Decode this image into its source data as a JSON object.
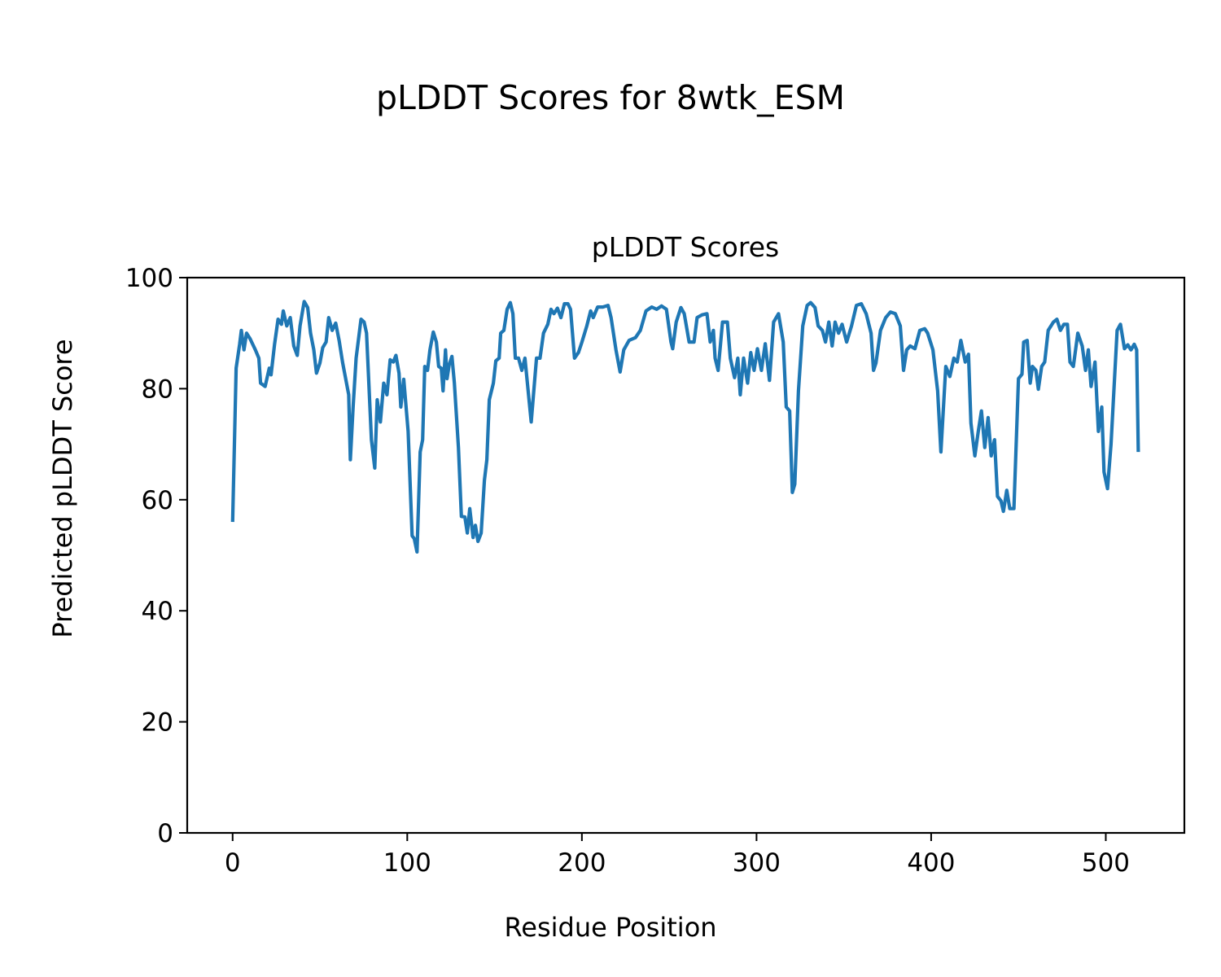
{
  "figure_title": "pLDDT Scores for 8wtk_ESM",
  "chart_data": {
    "type": "line",
    "title": "pLDDT Scores",
    "xlabel": "Residue Position",
    "ylabel": "Predicted pLDDT Score",
    "xlim": [
      -26,
      545
    ],
    "ylim": [
      0,
      100
    ],
    "xticks": [
      0,
      100,
      200,
      300,
      400,
      500
    ],
    "yticks": [
      0,
      20,
      40,
      60,
      80,
      100
    ],
    "grid": false,
    "line_color": "#1f77b4",
    "series": [
      {
        "name": "pLDDT",
        "x": [
          0,
          2,
          4,
          5,
          6.5,
          8,
          10,
          13,
          15,
          16,
          18.6,
          21,
          22,
          24,
          26,
          28,
          29,
          31,
          33,
          35,
          37,
          38.6,
          41,
          43,
          44.6,
          46.5,
          48,
          50,
          51.6,
          53.5,
          55,
          57,
          59,
          61,
          63,
          66.5,
          67.4,
          69,
          70.7,
          73.5,
          75.3,
          76.7,
          79.5,
          81.4,
          82.8,
          84.6,
          86.5,
          88.4,
          90.2,
          92,
          93.5,
          95.3,
          96.3,
          98,
          100.5,
          102.8,
          104,
          105.6,
          107.4,
          108.8,
          110,
          111.6,
          113,
          114.9,
          116.7,
          118,
          119.5,
          120.5,
          121.9,
          122.8,
          124,
          125.6,
          127,
          129.3,
          131,
          133,
          134.4,
          135.8,
          137.7,
          139,
          140.5,
          142.3,
          144.2,
          145.6,
          147,
          149.3,
          150.7,
          152.6,
          153.5,
          155.3,
          157.2,
          159,
          160.5,
          161.9,
          163.7,
          165.6,
          167.4,
          168.8,
          171,
          174,
          176,
          178,
          180.5,
          182.3,
          184,
          186,
          188,
          190,
          192,
          193.5,
          195.8,
          198,
          200,
          202.8,
          205,
          206.5,
          209,
          212,
          215,
          216.7,
          219.5,
          221.9,
          224,
          227,
          230.7,
          233.5,
          236.7,
          240,
          242.8,
          245.6,
          248.4,
          251,
          252,
          254,
          256.7,
          258.6,
          261.4,
          264.2,
          266,
          268.8,
          271.6,
          273.5,
          275.3,
          276.3,
          278,
          280.5,
          283.3,
          285,
          287.4,
          289.3,
          290.7,
          292.6,
          294.9,
          296.7,
          298.6,
          300.5,
          302.8,
          305,
          307.4,
          309.8,
          312.6,
          315.3,
          317,
          319,
          320.5,
          321.9,
          324,
          326.5,
          329,
          331,
          333.5,
          335.3,
          337.7,
          339.5,
          341.4,
          343.3,
          345,
          347,
          349,
          351.6,
          354.4,
          357.2,
          360,
          362.8,
          365.6,
          367,
          368.4,
          371,
          374,
          376.7,
          379.5,
          382.3,
          384.2,
          386,
          388,
          390.7,
          393.5,
          396.3,
          398,
          401,
          403.7,
          405.6,
          408.4,
          410.7,
          413,
          414.9,
          417,
          419.5,
          421.4,
          422.8,
          425,
          427,
          428.8,
          430.7,
          432.6,
          434.4,
          436.3,
          438,
          440,
          441.4,
          443.3,
          445,
          447.4,
          450,
          452,
          453,
          455,
          456.7,
          458,
          460,
          461.4,
          463.3,
          465,
          467,
          470,
          472,
          474,
          476,
          478,
          479.5,
          481.4,
          484,
          486.5,
          488.4,
          490,
          491.6,
          493.8,
          495.8,
          497.7,
          499,
          501,
          503,
          505,
          506.5,
          508.4,
          510.7,
          512.6,
          514.4,
          516.3,
          517.7,
          518.6
        ],
        "y": [
          56,
          83.7,
          88,
          90.5,
          87,
          90,
          89,
          87,
          85.5,
          81,
          80.4,
          83.7,
          82.5,
          88,
          92.5,
          91.6,
          94,
          91.3,
          92.8,
          87.7,
          86,
          91.3,
          95.7,
          94.6,
          90,
          87,
          82.8,
          84.6,
          87.4,
          88.4,
          92.8,
          90.5,
          91.8,
          88.7,
          84.7,
          78.9,
          67.2,
          76.7,
          85.5,
          92.5,
          92,
          90,
          70.8,
          65.7,
          78,
          74,
          81,
          78.9,
          85.2,
          84.8,
          86,
          82.8,
          76.7,
          81.7,
          72.3,
          53.5,
          53,
          50.6,
          68.6,
          70.8,
          84,
          83.3,
          87,
          90.2,
          88.4,
          84,
          83.7,
          79.6,
          87,
          81.8,
          84.3,
          85.8,
          81,
          69.4,
          57,
          56.9,
          54,
          58.4,
          53.2,
          55.4,
          52.5,
          54,
          63.5,
          67.2,
          78,
          81,
          85,
          85.5,
          90,
          90.5,
          94.3,
          95.5,
          93.5,
          85.5,
          85.5,
          83.3,
          85.5,
          81,
          74,
          85.5,
          85.5,
          90,
          91.6,
          94.3,
          93.5,
          94.5,
          92.8,
          95.3,
          95.3,
          94.3,
          85.5,
          86.5,
          88.4,
          91.3,
          94,
          92.8,
          94.7,
          94.7,
          95,
          92.8,
          87,
          83,
          87,
          88.7,
          89.2,
          90.5,
          94,
          94.7,
          94.3,
          94.9,
          94.3,
          88.4,
          87.2,
          92,
          94.6,
          93.5,
          88.4,
          88.4,
          92.8,
          93.3,
          93.5,
          88.4,
          90.5,
          85.5,
          83.3,
          92,
          92,
          85.5,
          82,
          85.5,
          78.9,
          85.5,
          81,
          86.5,
          83.3,
          87.2,
          83.3,
          88.1,
          81.5,
          92,
          93.5,
          88.4,
          76.7,
          76,
          61.3,
          62.8,
          79.6,
          91.3,
          95,
          95.5,
          94.6,
          91.3,
          90.5,
          88.4,
          92,
          87.7,
          92,
          90,
          91.6,
          88.4,
          91.3,
          95,
          95.3,
          93.5,
          90,
          83.3,
          84.6,
          90.5,
          92.8,
          93.8,
          93.5,
          91.3,
          83.3,
          87,
          87.7,
          87.2,
          90.5,
          90.8,
          90,
          87,
          79.6,
          68.6,
          84,
          82.2,
          85.5,
          84.8,
          88.7,
          84.8,
          86.2,
          73.8,
          67.9,
          72.3,
          76,
          69.4,
          74.8,
          67.9,
          70.8,
          60.6,
          59.8,
          57.9,
          61.7,
          58.4,
          58.4,
          81.8,
          82.6,
          88.4,
          88.7,
          81,
          84,
          83.3,
          79.9,
          84,
          84.8,
          90.5,
          92,
          92.5,
          90.5,
          91.6,
          91.6,
          84.8,
          84,
          90,
          87.7,
          83.3,
          87,
          80.4,
          84.8,
          72.3,
          76.7,
          65,
          62,
          70,
          81.8,
          90.5,
          91.6,
          87.2,
          87.9,
          87,
          88,
          87,
          68.6
        ]
      }
    ]
  }
}
